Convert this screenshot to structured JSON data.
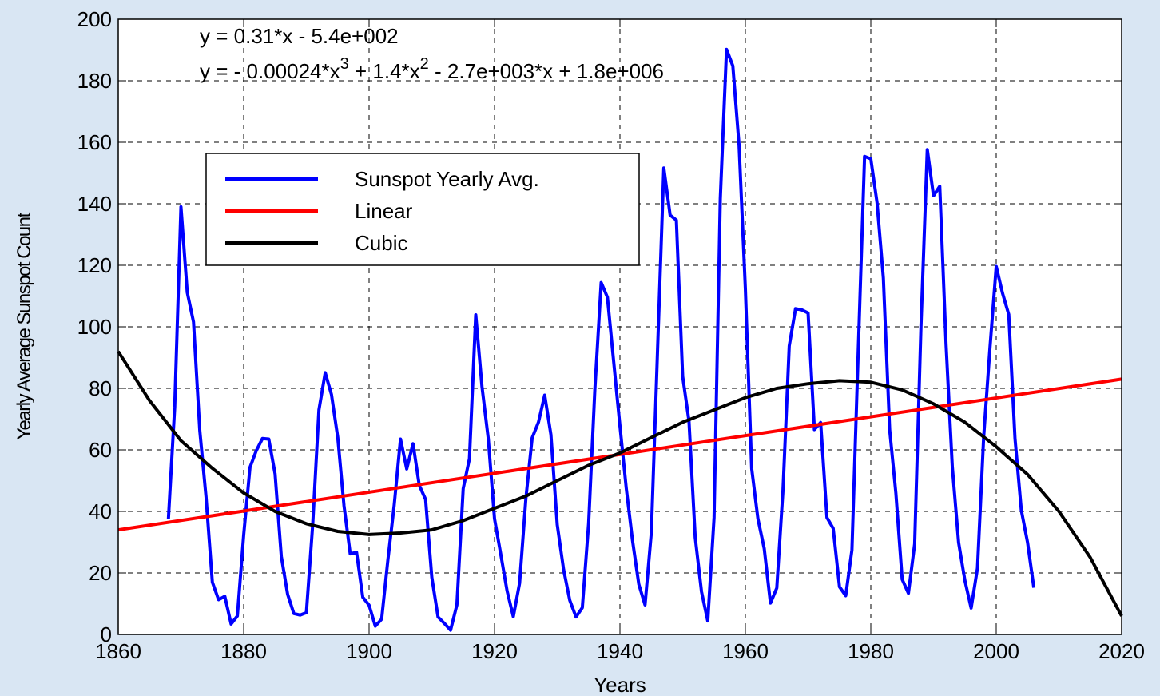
{
  "chart_data": {
    "type": "line",
    "xlabel": "Years",
    "ylabel": "Yearly Average Sunspot Count",
    "annotations": [
      {
        "parts": [
          "y = 0.31*x - 5.4e+002"
        ]
      },
      {
        "parts": [
          "y = - 0.00024*x",
          "3",
          " + 1.4*x",
          "2",
          " - 2.7e+003*x + 1.8e+006"
        ]
      }
    ],
    "xlim": [
      1860,
      2020
    ],
    "xticks": [
      1860,
      1880,
      1900,
      1920,
      1940,
      1960,
      1980,
      2000,
      2020
    ],
    "ylim": [
      0,
      200
    ],
    "yticks": [
      0,
      20,
      40,
      60,
      80,
      100,
      120,
      140,
      160,
      180,
      200
    ],
    "grid": true,
    "legend": "upper left",
    "series": [
      {
        "name": "Sunspot Yearly Avg.",
        "color": "#0000ff",
        "x": [
          1868,
          1869,
          1870,
          1871,
          1872,
          1873,
          1874,
          1875,
          1876,
          1877,
          1878,
          1879,
          1880,
          1881,
          1882,
          1883,
          1884,
          1885,
          1886,
          1887,
          1888,
          1889,
          1890,
          1891,
          1892,
          1893,
          1894,
          1895,
          1896,
          1897,
          1898,
          1899,
          1900,
          1901,
          1902,
          1903,
          1904,
          1905,
          1906,
          1907,
          1908,
          1909,
          1910,
          1911,
          1912,
          1913,
          1914,
          1915,
          1916,
          1917,
          1918,
          1919,
          1920,
          1921,
          1922,
          1923,
          1924,
          1925,
          1926,
          1927,
          1928,
          1929,
          1930,
          1931,
          1932,
          1933,
          1934,
          1935,
          1936,
          1937,
          1938,
          1939,
          1940,
          1941,
          1942,
          1943,
          1944,
          1945,
          1946,
          1947,
          1948,
          1949,
          1950,
          1951,
          1952,
          1953,
          1954,
          1955,
          1956,
          1957,
          1958,
          1959,
          1960,
          1961,
          1962,
          1963,
          1964,
          1965,
          1966,
          1967,
          1968,
          1969,
          1970,
          1971,
          1972,
          1973,
          1974,
          1975,
          1976,
          1977,
          1978,
          1979,
          1980,
          1981,
          1982,
          1983,
          1984,
          1985,
          1986,
          1987,
          1988,
          1989,
          1990,
          1991,
          1992,
          1993,
          1994,
          1995,
          1996,
          1997,
          1998,
          1999,
          2000,
          2001,
          2002,
          2003,
          2004,
          2005,
          2006
        ],
        "values": [
          37.6,
          74.0,
          139.0,
          111.2,
          101.6,
          66.2,
          44.7,
          17.0,
          11.3,
          12.4,
          3.4,
          6.0,
          32.3,
          54.3,
          59.7,
          63.7,
          63.5,
          52.2,
          25.4,
          13.1,
          6.8,
          6.3,
          7.1,
          35.6,
          73.0,
          85.1,
          78.0,
          64.0,
          41.8,
          26.2,
          26.7,
          12.1,
          9.5,
          2.7,
          5.0,
          24.4,
          42.0,
          63.5,
          53.8,
          62.0,
          48.5,
          43.9,
          18.6,
          5.7,
          3.6,
          1.4,
          9.6,
          47.4,
          57.1,
          103.9,
          80.6,
          63.6,
          37.6,
          26.1,
          14.2,
          5.8,
          16.7,
          44.3,
          63.9,
          69.0,
          77.8,
          64.9,
          35.7,
          21.2,
          11.1,
          5.7,
          8.7,
          36.1,
          79.7,
          114.4,
          109.6,
          88.8,
          67.8,
          47.5,
          30.6,
          16.3,
          9.6,
          33.2,
          92.6,
          151.6,
          136.3,
          134.7,
          83.9,
          69.4,
          31.5,
          13.9,
          4.4,
          38.0,
          141.7,
          190.2,
          184.8,
          159.0,
          112.3,
          53.9,
          37.6,
          27.9,
          10.2,
          15.1,
          47.0,
          93.8,
          105.9,
          105.5,
          104.5,
          66.6,
          68.9,
          38.0,
          34.5,
          15.5,
          12.6,
          27.5,
          92.5,
          155.4,
          154.6,
          140.4,
          115.9,
          66.6,
          45.9,
          17.9,
          13.4,
          29.4,
          100.2,
          157.6,
          142.6,
          145.7,
          94.3,
          54.6,
          29.9,
          17.5,
          8.6,
          21.5,
          64.3,
          93.3,
          119.6,
          111.0,
          104.0,
          63.7,
          40.4,
          29.8,
          15.2
        ]
      },
      {
        "name": "Linear",
        "color": "#ff0000",
        "x": [
          1860,
          2020
        ],
        "values": [
          34,
          83
        ]
      },
      {
        "name": "Cubic",
        "color": "#000000",
        "x": [
          1860,
          1865,
          1870,
          1875,
          1880,
          1885,
          1890,
          1895,
          1900,
          1905,
          1910,
          1915,
          1920,
          1925,
          1930,
          1935,
          1940,
          1945,
          1950,
          1955,
          1960,
          1965,
          1970,
          1975,
          1980,
          1985,
          1990,
          1995,
          2000,
          2005,
          2010,
          2015,
          2020
        ],
        "values": [
          92,
          76,
          63,
          54,
          46,
          40,
          36,
          33.5,
          32.5,
          33,
          34,
          37,
          41,
          45,
          50,
          55,
          59,
          64,
          69,
          73,
          77,
          80,
          81.5,
          82.5,
          82,
          79.5,
          75,
          69,
          61,
          52,
          40,
          25,
          6
        ]
      }
    ]
  }
}
